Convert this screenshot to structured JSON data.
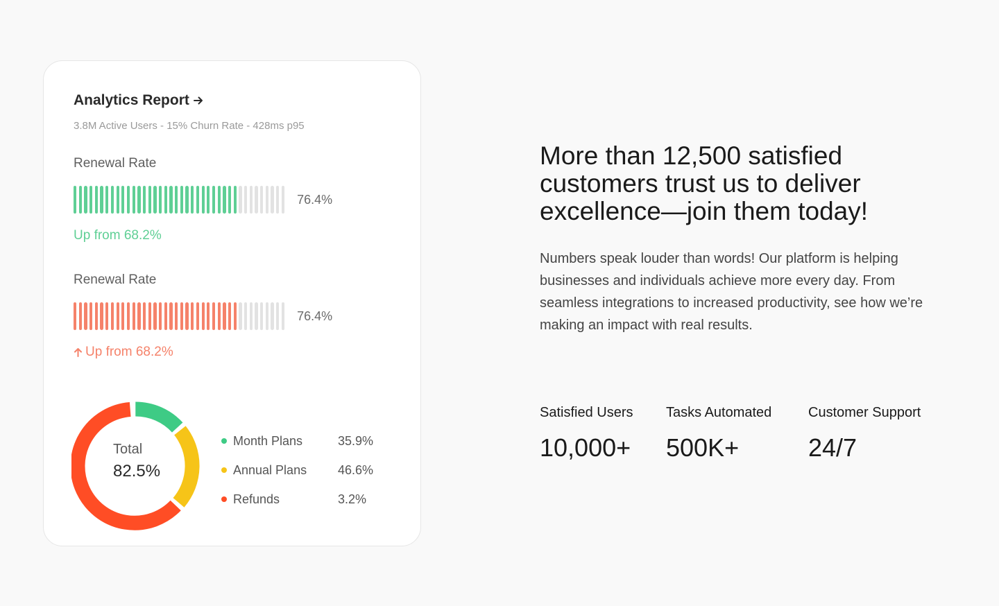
{
  "card": {
    "title": "Analytics Report",
    "subtitle": "3.8M Active Users - 15% Churn Rate - 428ms p95",
    "metrics": [
      {
        "label": "Renewal Rate",
        "value": "76.4%",
        "fraction": 0.764,
        "trend": "Up from 68.2%",
        "color": "#5fcf95"
      },
      {
        "label": "Renewal Rate",
        "value": "76.4%",
        "fraction": 0.764,
        "trend": "Up from 68.2%",
        "color": "#f5826a"
      }
    ],
    "donut": {
      "label": "Total",
      "value": "82.5%"
    },
    "legend": [
      {
        "name": "Month Plans",
        "value": "35.9%",
        "color": "#3ecb85"
      },
      {
        "name": "Annual Plans",
        "value": "46.6%",
        "color": "#f6c418"
      },
      {
        "name": "Refunds",
        "value": "3.2%",
        "color": "#ff4d25"
      }
    ]
  },
  "headline": "More than 12,500 satisfied customers trust us to deliver excellence—join them today!",
  "description": "Numbers speak louder than words! Our platform is helping businesses and individuals achieve more every day. From seamless integrations to increased productivity, see how we’re making an impact with real results.",
  "stats": [
    {
      "label": "Satisfied Users",
      "value": "10,000+"
    },
    {
      "label": "Tasks Automated",
      "value": "500K+"
    },
    {
      "label": "Customer Support",
      "value": "24/7"
    }
  ],
  "icons": {
    "title_arrow": "arrow-right-icon",
    "trend_arrow": "arrow-up-icon"
  }
}
